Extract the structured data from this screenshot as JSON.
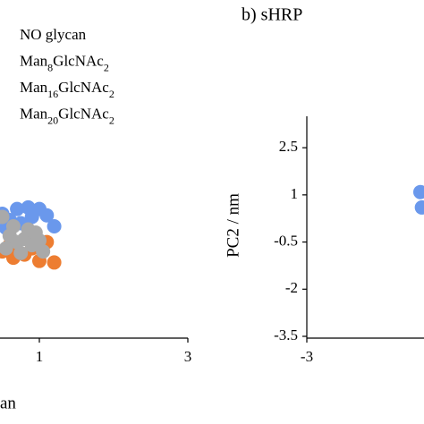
{
  "chart_data": [
    {
      "type": "scatter",
      "x_label": "an",
      "xlim": [
        -3,
        3
      ],
      "xticks": [
        1,
        3
      ],
      "ylim": [
        -3.5,
        3.5
      ],
      "series": [
        {
          "name": "NO glycan",
          "color": "#6a98ec",
          "x": [
            0.5,
            0.7,
            0.85,
            1.0,
            1.1,
            0.6,
            0.9,
            1.2,
            0.75,
            0.55
          ],
          "y": [
            0.4,
            0.55,
            0.6,
            0.55,
            0.35,
            0.2,
            0.3,
            0.0,
            0.1,
            -0.05
          ]
        },
        {
          "name": "Man8GlcNAc2",
          "color": "#ed7d31",
          "x": [
            0.5,
            0.65,
            0.8,
            1.0,
            1.2,
            0.6,
            0.9,
            1.1
          ],
          "y": [
            -0.8,
            -1.0,
            -0.9,
            -1.1,
            -1.15,
            -0.6,
            -0.7,
            -0.5
          ]
        },
        {
          "name": "Man16GlcNAc2",
          "color": "#a9a9a9",
          "x": [
            0.5,
            0.6,
            0.7,
            0.8,
            0.9,
            1.0,
            1.05,
            0.55,
            0.75,
            0.95,
            0.65,
            0.85
          ],
          "y": [
            0.3,
            -0.3,
            -0.5,
            -0.4,
            -0.6,
            -0.45,
            -0.8,
            -0.7,
            -0.85,
            -0.2,
            0.0,
            -0.1
          ]
        },
        {
          "name": "Man20GlcNAc2",
          "color": "#ffc000",
          "x": [],
          "y": []
        }
      ]
    },
    {
      "type": "scatter",
      "title": "b) sHRP",
      "y_label": "PC2 / nm",
      "xlim": [
        -3,
        3
      ],
      "xticks": [
        -3
      ],
      "ylim": [
        -3.5,
        3.5
      ],
      "yticks": [
        2.5,
        1,
        -0.5,
        -2,
        -3.5
      ],
      "series": [
        {
          "color": "#6a98ec",
          "x": [
            -1.47,
            -1.45
          ],
          "y": [
            1.09,
            0.6
          ]
        }
      ]
    }
  ]
}
